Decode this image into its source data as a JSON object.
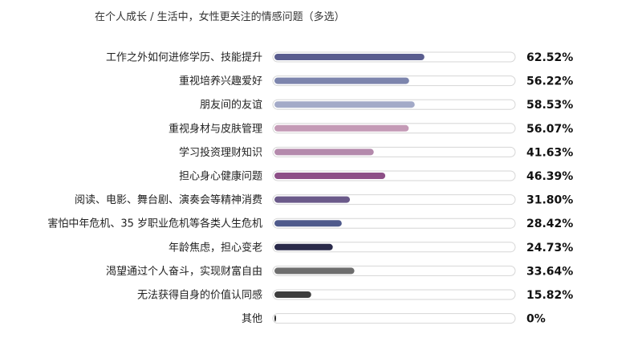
{
  "chart_data": {
    "type": "bar",
    "orientation": "horizontal",
    "title": "在个人成长 / 生活中，女性更关注的情感问题（多选）",
    "categories": [
      "工作之外如何进修学历、技能提升",
      "重视培养兴趣爱好",
      "朋友间的友谊",
      "重视身材与皮肤管理",
      "学习投资理财知识",
      "担心身心健康问题",
      "阅读、电影、舞台剧、演奏会等精神消费",
      "害怕中年危机、35 岁职业危机等各类人生危机",
      "年龄焦虑，担心变老",
      "渴望通过个人奋斗，实现财富自由",
      "无法获得自身的价值认同感",
      "其他"
    ],
    "values": [
      62.52,
      56.22,
      58.53,
      56.07,
      41.63,
      46.39,
      31.8,
      28.42,
      24.73,
      33.64,
      15.82,
      0
    ],
    "value_labels": [
      "62.52%",
      "56.22%",
      "58.53%",
      "56.07%",
      "41.63%",
      "46.39%",
      "31.80%",
      "28.42%",
      "24.73%",
      "33.64%",
      "15.82%",
      "0%"
    ],
    "bar_colors": [
      "#5a5d8f",
      "#7d85ad",
      "#a3aac8",
      "#c49ab6",
      "#b48aac",
      "#8d4f87",
      "#6b5a8a",
      "#4f5a8c",
      "#2a2a4a",
      "#6e6e6e",
      "#3d3d3d",
      "#2a2a2a"
    ],
    "track_color": "#ffffff",
    "track_border_color": "#d6d6d6",
    "xlim": [
      0,
      100
    ],
    "grid": false,
    "legend": "none"
  }
}
